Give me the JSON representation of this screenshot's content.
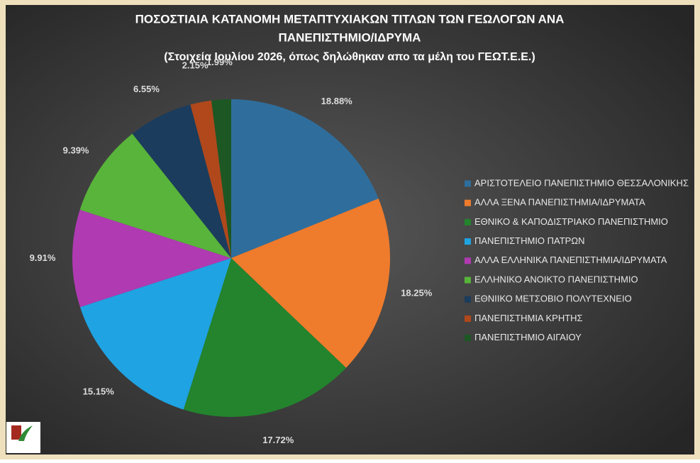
{
  "chart_data": {
    "type": "pie",
    "title": [
      "ΠΟΣΟΣΤΙΑΙΑ ΚΑΤΑΝΟΜΗ ΜΕΤΑΠΤΥΧΙΑΚΩΝ ΤΙΤΛΩΝ ΤΩΝ ΓΕΩΛΟΓΩΝ ΑΝΑ",
      "ΠΑΝΕΠΙΣΤΗΜΙΟ/ΙΔΡΥΜΑ"
    ],
    "subtitle": "(Στοιχεία Ιουλίου 2026, όπως δηλώθηκαν απο τα μέλη του ΓΕΩΤ.Ε.Ε.)",
    "categories": [
      "ΑΡΙΣΤΟΤΕΛΕΙΟ ΠΑΝΕΠΙΣΤΗΜΙΟ ΘΕΣΣΑΛΟΝΙΚΗΣ",
      "ΑΛΛΑ ΞΕΝΑ ΠΑΝΕΠΙΣΤΗΜΙΑ/ΙΔΡΥΜΑΤΑ",
      "ΕΘΝΙΚΟ & ΚΑΠΟΔΙΣΤΡΙΑΚΟ ΠΑΝΕΠΙΣΤΗΜΙΟ",
      "ΠΑΝΕΠΙΣΤΗΜΙΟ ΠΑΤΡΩΝ",
      "ΑΛΛΑ ΕΛΛΗΝΙΚΑ ΠΑΝΕΠΙΣΤΗΜΙΑ/ΙΔΡΥΜΑΤΑ",
      "ΕΛΛΗΝΙΚΟ ΑΝΟΙΚΤΟ ΠΑΝΕΠΙΣΤΗΜΙΟ",
      "ΕΘΝΙΙΚΟ ΜΕΤΣΟΒΙΟ ΠΟΛΥΤΕΧΝΕΙΟ",
      "ΠΑΝΕΠΙΣΤΗΜΙΑ ΚΡΗΤΗΣ",
      "ΠΑΝΕΠΙΣΤΗΜΙΟ ΑΙΓΑΙΟΥ"
    ],
    "values": [
      18.88,
      18.25,
      17.72,
      15.15,
      9.91,
      9.39,
      6.55,
      2.15,
      1.99
    ],
    "value_labels": [
      "18.88%",
      "18.25%",
      "17.72%",
      "15.15%",
      "9.91%",
      "9.39%",
      "6.55%",
      "2.15%",
      "1.99%"
    ],
    "colors": [
      "#2f6e9c",
      "#ef7b2c",
      "#23842d",
      "#1fa3e2",
      "#b03ab2",
      "#58b43a",
      "#1b3c5c",
      "#b0481c",
      "#1d5723"
    ],
    "legend": "right"
  }
}
